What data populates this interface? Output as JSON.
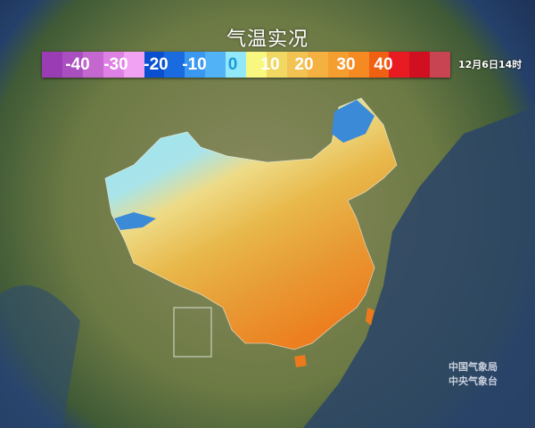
{
  "title": "气温实况",
  "timestamp": "12月6日14时",
  "legend": {
    "colors": [
      "#9a3db4",
      "#a94fc0",
      "#c468d0",
      "#de80e4",
      "#f2a2f2",
      "#0a4fd0",
      "#1a6ae0",
      "#3a98f0",
      "#52b2f6",
      "#92e8f8",
      "#f8f880",
      "#f0d862",
      "#f2c252",
      "#f5b042",
      "#f59e30",
      "#f58a22",
      "#f06012",
      "#e81a22",
      "#d01020",
      "#c84452"
    ],
    "labels": [
      {
        "text": "-40",
        "color": "#ffffff"
      },
      {
        "text": "-30",
        "color": "#ffffff"
      },
      {
        "text": "-20",
        "color": "#ffffff"
      },
      {
        "text": "-10",
        "color": "#ffffff"
      },
      {
        "text": "0",
        "color": "#1a9ad8"
      },
      {
        "text": "10",
        "color": "#ffffff"
      },
      {
        "text": "20",
        "color": "#ffffff"
      },
      {
        "text": "30",
        "color": "#ffffff"
      },
      {
        "text": "40",
        "color": "#ffffff"
      }
    ]
  },
  "watermark": {
    "line1": "中国气象局",
    "line2": "中央气象台"
  }
}
